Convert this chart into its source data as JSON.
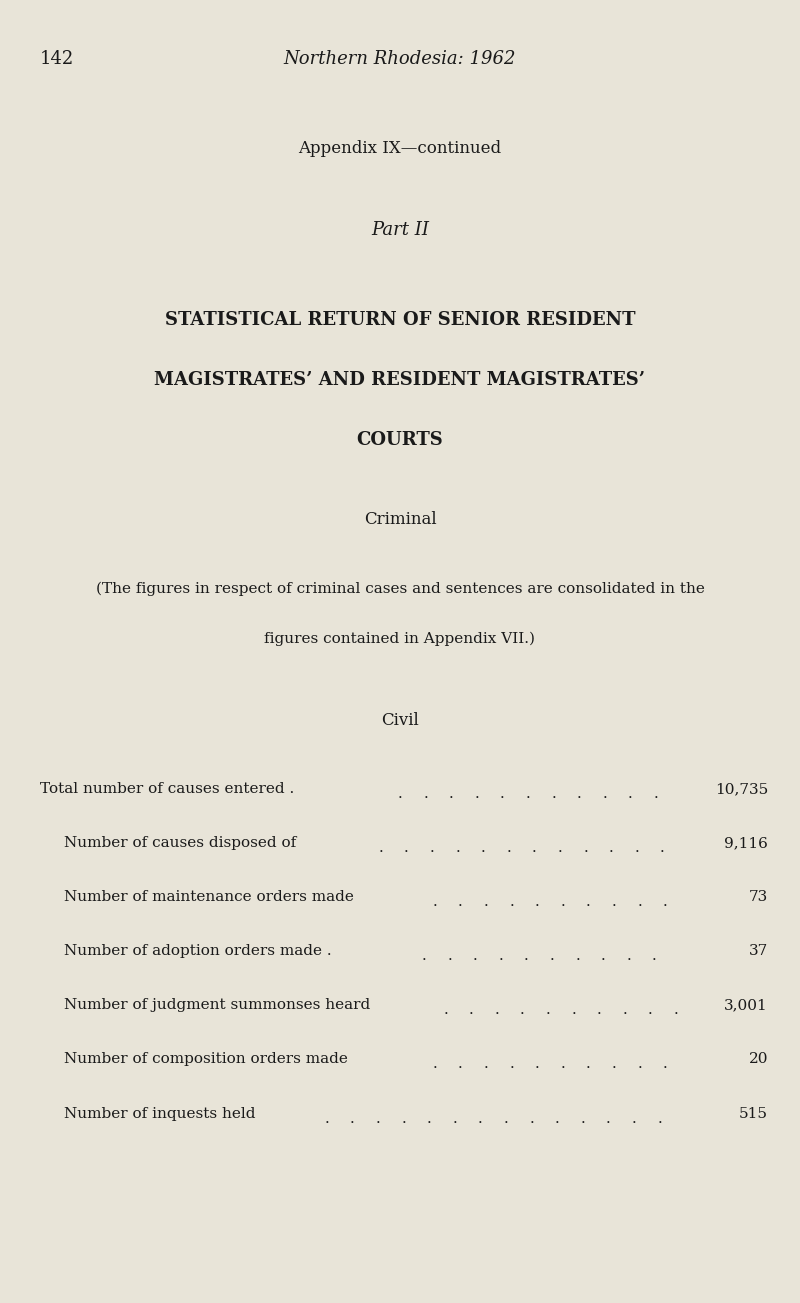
{
  "page_number": "142",
  "header_italic": "Northern Rhodesia: 1962",
  "appendix_line": "Appendix IX—continued",
  "part_line": "Part II",
  "title_line1": "STATISTICAL RETURN OF SENIOR RESIDENT",
  "title_line2": "MAGISTRATES’ AND RESIDENT MAGISTRATES’",
  "title_line3": "COURTS",
  "section_criminal": "Criminal",
  "criminal_note_line1": "(The figures in respect of criminal cases and sentences are consolidated in the",
  "criminal_note_line2": "figures contained in Appendix VII.)",
  "section_civil": "Civil",
  "rows": [
    {
      "label": "Total number of causes entered .",
      "indent": false,
      "value": "10,735"
    },
    {
      "label": "Number of causes disposed of",
      "indent": true,
      "value": "9,116"
    },
    {
      "label": "Number of maintenance orders made",
      "indent": true,
      "value": "73"
    },
    {
      "label": "Number of adoption orders made .",
      "indent": true,
      "value": "37"
    },
    {
      "label": "Number of judgment summonses heard",
      "indent": true,
      "value": "3,001"
    },
    {
      "label": "Number of composition orders made",
      "indent": true,
      "value": "20"
    },
    {
      "label": "Number of inquests held",
      "indent": true,
      "value": "515"
    }
  ],
  "bg_color": "#e8e4d8",
  "text_color": "#1a1a1a",
  "font_size_header": 13,
  "font_size_appendix": 12,
  "font_size_title": 13,
  "font_size_body": 11,
  "font_size_page": 13
}
